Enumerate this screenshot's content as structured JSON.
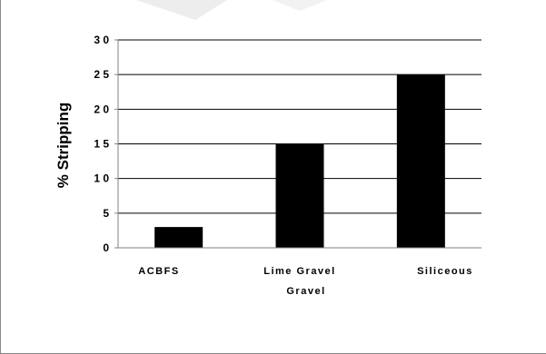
{
  "chart_data": {
    "type": "bar",
    "categories": [
      "ACBFS",
      "Lime Gravel",
      "Siliceous"
    ],
    "category_extra_label": "Gravel",
    "values": [
      3,
      15,
      25
    ],
    "title": "",
    "xlabel": "",
    "ylabel": "% Stripping",
    "ylim": [
      0,
      30
    ],
    "yticks": [
      0,
      5,
      10,
      15,
      20,
      25,
      30
    ],
    "ytick_labels": [
      "0",
      "5",
      "1 0",
      "1 5",
      "2 0",
      "2 5",
      "3 0"
    ],
    "grid": true,
    "legend": "none",
    "colors": {
      "bar": "#000000",
      "grid": "#000000",
      "axis": "#808080",
      "background": "#ffffff"
    }
  }
}
